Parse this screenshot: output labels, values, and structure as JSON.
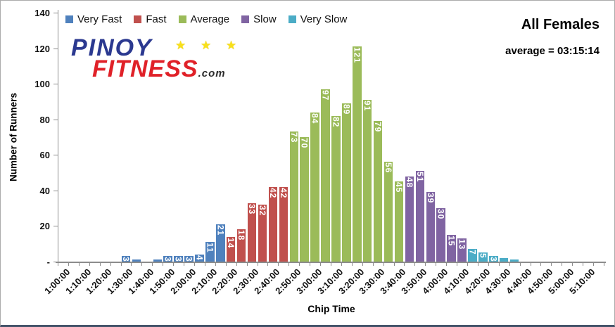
{
  "header": {
    "title": "All Females",
    "average_label": "average = 03:15:14"
  },
  "logo": {
    "line1": "PINOY",
    "stars": "★ ★ ★",
    "line2": "FITNESS",
    "suffix": ".com",
    "colors": {
      "line1": "#2b3990",
      "line2": "#e02128",
      "stars": "#f8e01a",
      "suffix": "#2b2b2b"
    }
  },
  "chart_data": {
    "type": "bar",
    "title": "All Females",
    "annotation": "average = 03:15:14",
    "xlabel": "Chip Time",
    "ylabel": "Number of Runners",
    "ylim": [
      0,
      140
    ],
    "ytick_step": 20,
    "ytick_labels": [
      "-",
      "20",
      "40",
      "60",
      "80",
      "100",
      "120",
      "140"
    ],
    "grid": false,
    "legend_position": "top",
    "bin_width_minutes": 5,
    "x_axis_labels": [
      "1:00:00",
      "1:10:00",
      "1:20:00",
      "1:30:00",
      "1:40:00",
      "1:50:00",
      "2:00:00",
      "2:10:00",
      "2:20:00",
      "2:30:00",
      "2:40:00",
      "2:50:00",
      "3:00:00",
      "3:10:00",
      "3:20:00",
      "3:30:00",
      "3:40:00",
      "3:50:00",
      "4:00:00",
      "4:10:00",
      "4:20:00",
      "4:30:00",
      "4:40:00",
      "4:50:00",
      "5:00:00",
      "5:10:00"
    ],
    "legend": [
      {
        "label": "Very Fast",
        "color": "#4F81BD"
      },
      {
        "label": "Fast",
        "color": "#C0504D"
      },
      {
        "label": "Average",
        "color": "#9BBB59"
      },
      {
        "label": "Slow",
        "color": "#8064A2"
      },
      {
        "label": "Very Slow",
        "color": "#4BACC6"
      }
    ],
    "bars": [
      {
        "time": "1:30:00",
        "value": 3,
        "category": "Very Fast"
      },
      {
        "time": "1:35:00",
        "value": 1,
        "category": "Very Fast"
      },
      {
        "time": "1:40:00",
        "value": 0,
        "category": "Very Fast"
      },
      {
        "time": "1:45:00",
        "value": 1,
        "category": "Very Fast"
      },
      {
        "time": "1:50:00",
        "value": 3,
        "category": "Very Fast"
      },
      {
        "time": "1:55:00",
        "value": 3,
        "category": "Very Fast"
      },
      {
        "time": "2:00:00",
        "value": 3,
        "category": "Very Fast"
      },
      {
        "time": "2:05:00",
        "value": 4,
        "category": "Very Fast"
      },
      {
        "time": "2:10:00",
        "value": 11,
        "category": "Very Fast"
      },
      {
        "time": "2:15:00",
        "value": 21,
        "category": "Very Fast"
      },
      {
        "time": "2:20:00",
        "value": 14,
        "category": "Fast"
      },
      {
        "time": "2:25:00",
        "value": 18,
        "category": "Fast"
      },
      {
        "time": "2:30:00",
        "value": 33,
        "category": "Fast"
      },
      {
        "time": "2:35:00",
        "value": 32,
        "category": "Fast"
      },
      {
        "time": "2:40:00",
        "value": 42,
        "category": "Fast"
      },
      {
        "time": "2:45:00",
        "value": 42,
        "category": "Fast"
      },
      {
        "time": "2:50:00",
        "value": 73,
        "category": "Average"
      },
      {
        "time": "2:55:00",
        "value": 70,
        "category": "Average"
      },
      {
        "time": "3:00:00",
        "value": 84,
        "category": "Average"
      },
      {
        "time": "3:05:00",
        "value": 97,
        "category": "Average"
      },
      {
        "time": "3:10:00",
        "value": 82,
        "category": "Average"
      },
      {
        "time": "3:15:00",
        "value": 89,
        "category": "Average"
      },
      {
        "time": "3:20:00",
        "value": 121,
        "category": "Average"
      },
      {
        "time": "3:25:00",
        "value": 91,
        "category": "Average"
      },
      {
        "time": "3:30:00",
        "value": 79,
        "category": "Average"
      },
      {
        "time": "3:35:00",
        "value": 56,
        "category": "Average"
      },
      {
        "time": "3:40:00",
        "value": 45,
        "category": "Average"
      },
      {
        "time": "3:45:00",
        "value": 48,
        "category": "Slow"
      },
      {
        "time": "3:50:00",
        "value": 51,
        "category": "Slow"
      },
      {
        "time": "3:55:00",
        "value": 39,
        "category": "Slow"
      },
      {
        "time": "4:00:00",
        "value": 30,
        "category": "Slow"
      },
      {
        "time": "4:05:00",
        "value": 15,
        "category": "Slow"
      },
      {
        "time": "4:10:00",
        "value": 13,
        "category": "Slow"
      },
      {
        "time": "4:15:00",
        "value": 7,
        "category": "Very Slow"
      },
      {
        "time": "4:20:00",
        "value": 5,
        "category": "Very Slow"
      },
      {
        "time": "4:25:00",
        "value": 3,
        "category": "Very Slow"
      },
      {
        "time": "4:30:00",
        "value": 2,
        "category": "Very Slow"
      },
      {
        "time": "4:35:00",
        "value": 1,
        "category": "Very Slow"
      }
    ]
  }
}
